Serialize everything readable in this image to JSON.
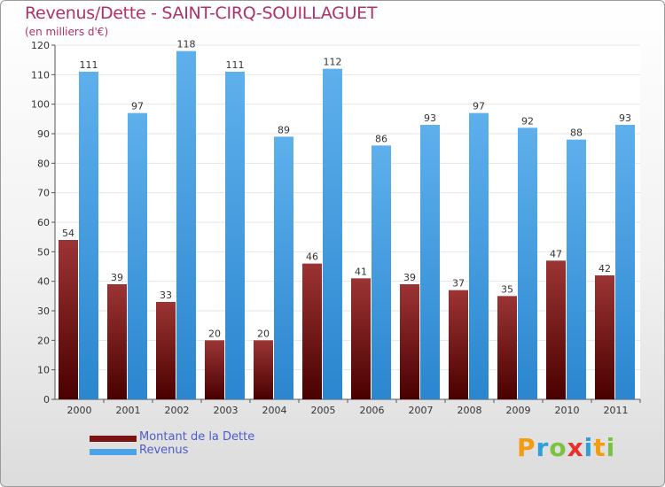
{
  "chart_data": {
    "type": "bar",
    "title": "Revenus/Dette - SAINT-CIRQ-SOUILLAGUET",
    "unit_label": "(en milliers d'€)",
    "categories": [
      "2000",
      "2001",
      "2002",
      "2003",
      "2004",
      "2005",
      "2006",
      "2007",
      "2008",
      "2009",
      "2010",
      "2011"
    ],
    "series": [
      {
        "name": "Montant de la Dette",
        "values": [
          54,
          39,
          33,
          20,
          20,
          46,
          41,
          39,
          37,
          35,
          47,
          42
        ],
        "color": "#7a1414"
      },
      {
        "name": "Revenus",
        "values": [
          111,
          97,
          118,
          111,
          89,
          112,
          86,
          93,
          97,
          92,
          88,
          93
        ],
        "color": "#4aa3e6"
      }
    ],
    "ylim": [
      0,
      120
    ],
    "yticks": [
      0,
      10,
      20,
      30,
      40,
      50,
      60,
      70,
      80,
      90,
      100,
      110,
      120
    ],
    "grid": true,
    "legend_position": "bottom-left"
  },
  "logo": {
    "text": "Proxiti",
    "letters": [
      "P",
      "r",
      "o",
      "x",
      "i",
      "t",
      "i"
    ],
    "colors": [
      "#f39c12",
      "#2e9fd8",
      "#7cc242",
      "#e8302c",
      "#2e9fd8",
      "#f39c12",
      "#7cc242"
    ]
  }
}
